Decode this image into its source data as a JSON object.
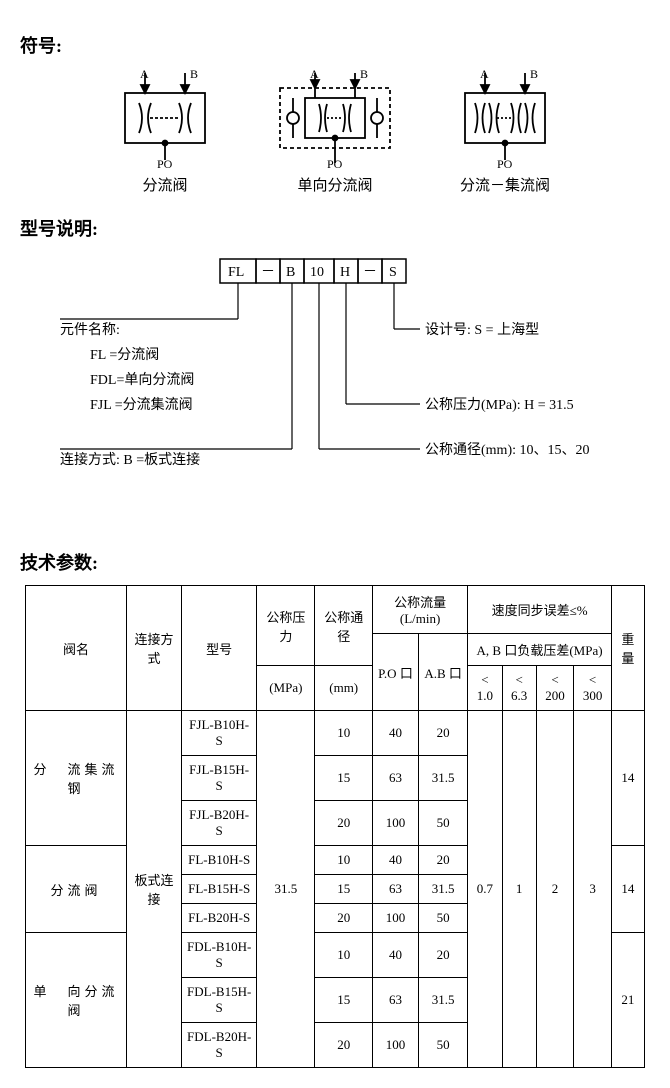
{
  "sections": {
    "symbols_title": "符号:",
    "model_title": "型号说明:",
    "params_title": "技术参数:"
  },
  "symbols": {
    "port_a": "A",
    "port_b": "B",
    "port_po": "PO",
    "sym1_label": "分流阀",
    "sym2_label": "单向分流阀",
    "sym3_label": "分流－集流阀"
  },
  "model": {
    "cells": [
      "FL",
      "－",
      "B",
      "10",
      "H",
      "－",
      "S"
    ],
    "left": {
      "component_label": "元件名称:",
      "fl": "FL =分流阀",
      "fdl": "FDL=单向分流阀",
      "fjl": "FJL =分流集流阀",
      "conn": "连接方式:  B =板式连接"
    },
    "right": {
      "design": "设计号:  S = 上海型",
      "pressure": "公称压力(MPa):  H = 31.5",
      "diameter": "公称通径(mm): 10、15、20"
    }
  },
  "table": {
    "headers": {
      "valve_name": "阀名",
      "conn_type": "连接方式",
      "model": "型号",
      "pressure_top": "公称压力",
      "pressure_unit": "(MPa)",
      "diameter_top": "公称通径",
      "diameter_unit": "(mm)",
      "flow_top": "公称流量(L/min)",
      "flow_po": "P.O 口",
      "flow_ab": "A.B 口",
      "sync_top": "速度同步误差≤%",
      "sync_sub": "A, B 口负载压差(MPa)",
      "sync_c1": "< 1.0",
      "sync_c2": "< 6.3",
      "sync_c3": "< 200",
      "sync_c4": "< 300",
      "weight": "重量"
    },
    "conn_value": "板式连接",
    "pressure_value": "31.5",
    "sync_values": [
      "0.7",
      "1",
      "2",
      "3"
    ],
    "groups": [
      {
        "name": "分　流集流钢",
        "weight": "14",
        "rows": [
          {
            "model": "FJL-B10H-S",
            "dia": "10",
            "po": "40",
            "ab": "20"
          },
          {
            "model": "FJL-B15H-S",
            "dia": "15",
            "po": "63",
            "ab": "31.5"
          },
          {
            "model": "FJL-B20H-S",
            "dia": "20",
            "po": "100",
            "ab": "50"
          }
        ]
      },
      {
        "name": "分流阀",
        "weight": "14",
        "rows": [
          {
            "model": "FL-B10H-S",
            "dia": "10",
            "po": "40",
            "ab": "20"
          },
          {
            "model": "FL-B15H-S",
            "dia": "15",
            "po": "63",
            "ab": "31.5"
          },
          {
            "model": "FL-B20H-S",
            "dia": "20",
            "po": "100",
            "ab": "50"
          }
        ]
      },
      {
        "name": "单　向分流阀",
        "weight": "21",
        "rows": [
          {
            "model": "FDL-B10H-S",
            "dia": "10",
            "po": "40",
            "ab": "20"
          },
          {
            "model": "FDL-B15H-S",
            "dia": "15",
            "po": "63",
            "ab": "31.5"
          },
          {
            "model": "FDL-B20H-S",
            "dia": "20",
            "po": "100",
            "ab": "50"
          }
        ]
      }
    ]
  },
  "styling": {
    "stroke": "#000000",
    "stroke_width": 1.8,
    "font_family": "SimSun",
    "bg": "#ffffff"
  }
}
